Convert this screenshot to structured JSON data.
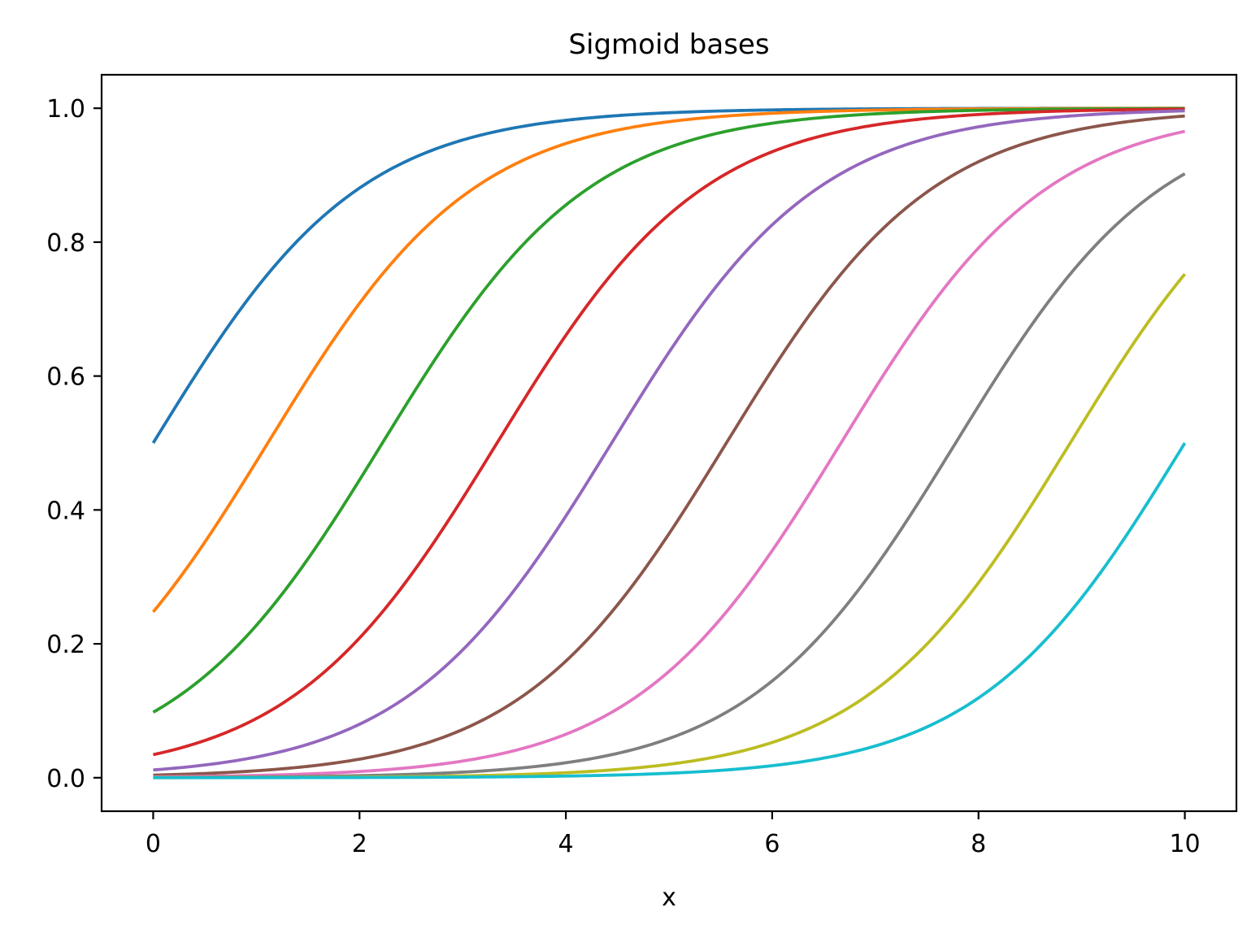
{
  "chart_data": {
    "type": "line",
    "title": "Sigmoid bases",
    "xlabel": "x",
    "ylabel": "",
    "xlim": [
      -0.5,
      10.5
    ],
    "ylim": [
      -0.05,
      1.05
    ],
    "xticks": [
      0,
      2,
      4,
      6,
      8,
      10
    ],
    "xtick_labels": [
      "0",
      "2",
      "4",
      "6",
      "8",
      "10"
    ],
    "yticks": [
      0.0,
      0.2,
      0.4,
      0.6,
      0.8,
      1.0
    ],
    "ytick_labels": [
      "0.0",
      "0.2",
      "0.4",
      "0.6",
      "0.8",
      "1.0"
    ],
    "grid": false,
    "legend": "none",
    "x_range": [
      0,
      10
    ],
    "sigmoid": {
      "centers": [
        0.0,
        1.111,
        2.222,
        3.333,
        4.444,
        5.556,
        6.667,
        7.778,
        8.889,
        10.0
      ],
      "scale": 1.0
    },
    "series": [
      {
        "color": "#1f77b4",
        "x": [
          0,
          1,
          2,
          3,
          4,
          5,
          6,
          7,
          8,
          9,
          10
        ],
        "values": [
          0.5,
          0.731,
          0.881,
          0.953,
          0.982,
          0.993,
          0.998,
          0.999,
          1.0,
          1.0,
          1.0
        ]
      },
      {
        "color": "#ff7f0e",
        "x": [
          0,
          1,
          2,
          3,
          4,
          5,
          6,
          7,
          8,
          9,
          10
        ],
        "values": [
          0.248,
          0.472,
          0.709,
          0.869,
          0.946,
          0.98,
          0.993,
          0.997,
          0.999,
          1.0,
          1.0
        ]
      },
      {
        "color": "#2ca02c",
        "x": [
          0,
          1,
          2,
          3,
          4,
          5,
          6,
          7,
          8,
          9,
          10
        ],
        "values": [
          0.098,
          0.228,
          0.445,
          0.685,
          0.855,
          0.942,
          0.978,
          0.992,
          0.997,
          0.999,
          1.0
        ]
      },
      {
        "color": "#d62728",
        "x": [
          0,
          1,
          2,
          3,
          4,
          5,
          6,
          7,
          8,
          9,
          10
        ],
        "values": [
          0.034,
          0.088,
          0.208,
          0.417,
          0.661,
          0.841,
          0.935,
          0.975,
          0.991,
          0.997,
          0.999
        ]
      },
      {
        "color": "#9467bd",
        "x": [
          0,
          1,
          2,
          3,
          4,
          5,
          6,
          7,
          8,
          9,
          10
        ],
        "values": [
          0.012,
          0.031,
          0.081,
          0.193,
          0.389,
          0.635,
          0.826,
          0.929,
          0.972,
          0.99,
          0.996
        ]
      },
      {
        "color": "#8c564b",
        "x": [
          0,
          1,
          2,
          3,
          4,
          5,
          6,
          7,
          8,
          9,
          10
        ],
        "values": [
          0.004,
          0.011,
          0.029,
          0.074,
          0.178,
          0.365,
          0.609,
          0.808,
          0.921,
          0.97,
          0.989
        ]
      },
      {
        "color": "#e377c2",
        "x": [
          0,
          1,
          2,
          3,
          4,
          5,
          6,
          7,
          8,
          9,
          10
        ],
        "values": [
          0.001,
          0.004,
          0.01,
          0.026,
          0.066,
          0.16,
          0.337,
          0.58,
          0.79,
          0.911,
          0.966
        ]
      },
      {
        "color": "#7f7f7f",
        "x": [
          0,
          1,
          2,
          3,
          4,
          5,
          6,
          7,
          8,
          9,
          10
        ],
        "values": [
          0.0,
          0.001,
          0.003,
          0.009,
          0.024,
          0.062,
          0.152,
          0.326,
          0.568,
          0.782,
          0.906
        ]
      },
      {
        "color": "#bcbd22",
        "x": [
          0,
          1,
          2,
          3,
          4,
          5,
          6,
          7,
          8,
          9,
          10
        ],
        "values": [
          0.0,
          0.0,
          0.001,
          0.003,
          0.009,
          0.023,
          0.06,
          0.148,
          0.319,
          0.561,
          0.755
        ]
      },
      {
        "color": "#17becf",
        "x": [
          0,
          1,
          2,
          3,
          4,
          5,
          6,
          7,
          8,
          9,
          10
        ],
        "values": [
          0.0,
          0.0,
          0.0,
          0.001,
          0.002,
          0.007,
          0.018,
          0.047,
          0.119,
          0.269,
          0.5
        ]
      }
    ]
  }
}
